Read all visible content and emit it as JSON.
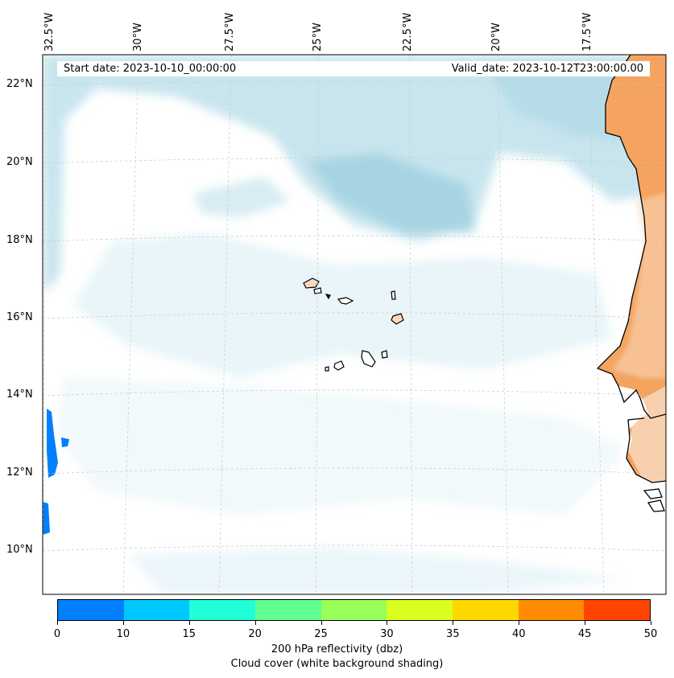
{
  "header": {
    "start_date": "Start date: 2023-10-10_00:00:00",
    "valid_date": "Valid_date: 2023-10-12T23:00:00.00"
  },
  "longitude_labels": [
    "32.5°W",
    "30°W",
    "27.5°W",
    "25°W",
    "22.5°W",
    "20°W",
    "17.5°W"
  ],
  "latitude_labels": [
    "22°N",
    "20°N",
    "18°N",
    "16°N",
    "14°N",
    "12°N",
    "10°N"
  ],
  "map": {
    "land_color": "#f4a460",
    "land_light_color": "#fbd9c0",
    "cloud_color": "#add8e6",
    "reflectivity_color": "#0080ff",
    "coastline_color": "#000000",
    "gridline_color": "#c8c8c8"
  },
  "colorbar": {
    "ticks": [
      "0",
      "10",
      "15",
      "20",
      "25",
      "30",
      "35",
      "40",
      "45",
      "50"
    ],
    "colors": [
      "#0080ff",
      "#00c8ff",
      "#20ffd8",
      "#60ff90",
      "#98ff58",
      "#d8ff20",
      "#ffd700",
      "#ff8c00",
      "#ff4500"
    ],
    "label_line1": "200 hPa reflectivity (dbz)",
    "label_line2": "Cloud cover (white background shading)"
  }
}
